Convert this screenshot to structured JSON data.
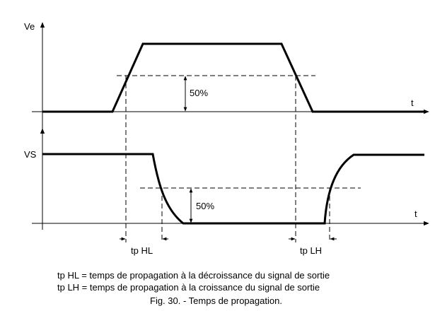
{
  "top_plot": {
    "y_axis_label": "Ve",
    "x_axis_label": "t",
    "threshold_label": "50%"
  },
  "bottom_plot": {
    "y_axis_label": "VS",
    "x_axis_label": "t",
    "threshold_label": "50%"
  },
  "delays": {
    "high_to_low_label": "tp HL",
    "low_to_high_label": "tp LH"
  },
  "legend": {
    "line1": "tp HL = temps de propagation à la décroissance du signal de sortie",
    "line2": "tp LH = temps de propagation à la croissance du signal de sortie"
  },
  "caption": "Fig. 30. - Temps de propagation."
}
